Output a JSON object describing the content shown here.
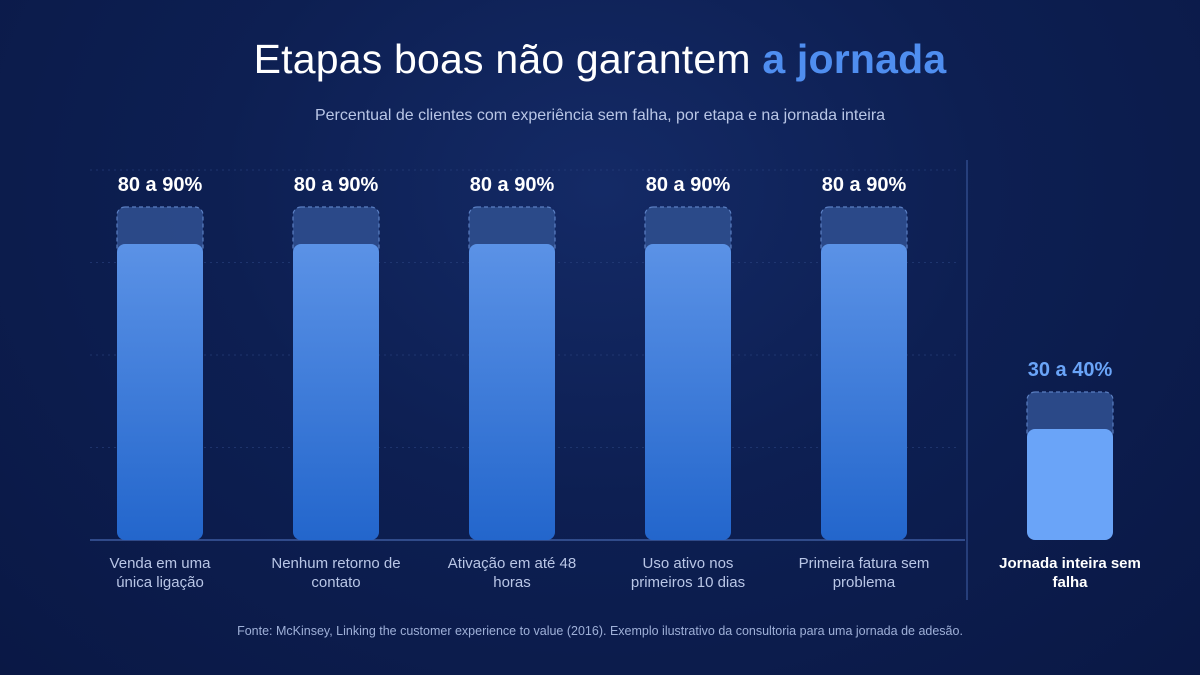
{
  "title": {
    "main": "Etapas boas não garantem",
    "accent": "a jornada"
  },
  "subtitle": "Percentual de clientes com experiência sem falha, por etapa e na jornada inteira",
  "source": "Fonte: McKinsey, Linking the customer experience to value (2016). Exemplo ilustrativo da consultoria para uma jornada de adesão.",
  "colors": {
    "background": "#0d1f52",
    "accent": "#4f8ef0",
    "bar_top": "#5b92e6",
    "bar_bottom": "#2366cc",
    "journey_bar": "#6aa4f8",
    "range_cap": "#2d4c8c",
    "journey_label": "#6aa4f8"
  },
  "chart_data": {
    "type": "bar",
    "categories": [
      "Venda em uma única ligação",
      "Nenhum retorno de contato",
      "Ativação em até 48 horas",
      "Uso ativo nos primeiros 10 dias",
      "Primeira fatura sem problema",
      "Jornada inteira sem falha"
    ],
    "category_lines": [
      [
        "Venda em uma",
        "única ligação"
      ],
      [
        "Nenhum retorno de",
        "contato"
      ],
      [
        "Ativação em até 48",
        "horas"
      ],
      [
        "Uso ativo nos",
        "primeiros 10 dias"
      ],
      [
        "Primeira fatura sem",
        "problema"
      ],
      [
        "Jornada inteira sem",
        "falha"
      ]
    ],
    "ranges": [
      [
        80,
        90
      ],
      [
        80,
        90
      ],
      [
        80,
        90
      ],
      [
        80,
        90
      ],
      [
        80,
        90
      ],
      [
        30,
        40
      ]
    ],
    "data_labels": [
      "80 a 90%",
      "80 a 90%",
      "80 a 90%",
      "80 a 90%",
      "80 a 90%",
      "30 a 40%"
    ],
    "highlight_index": 5,
    "ylim": [
      0,
      100
    ],
    "grid": true,
    "title": "Etapas boas não garantem a jornada",
    "xlabel": "",
    "ylabel": ""
  }
}
